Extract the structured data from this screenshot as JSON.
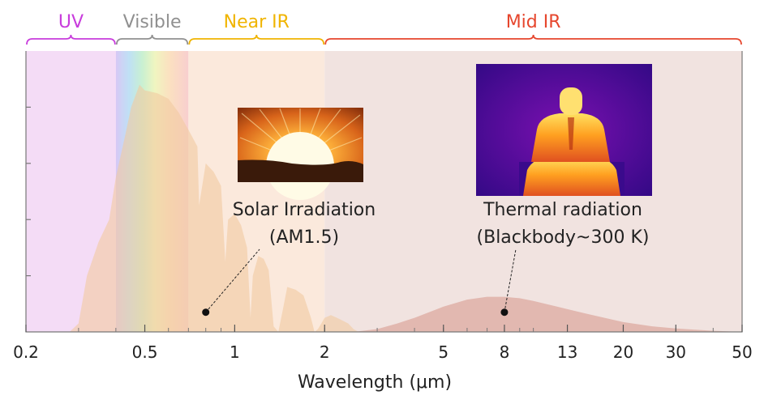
{
  "chart_data": {
    "type": "area",
    "title": "",
    "xlabel": "Wavelength (μm)",
    "ylabel": "",
    "xscale": "log",
    "xlim": [
      0.2,
      50
    ],
    "ylim": [
      0,
      1
    ],
    "x_ticks": [
      0.2,
      0.5,
      1,
      2,
      5,
      8,
      13,
      20,
      30,
      50
    ],
    "x_tick_labels": [
      "0.2",
      "0.5",
      "1",
      "2",
      "5",
      "8",
      "13",
      "20",
      "30",
      "50"
    ],
    "grid": false,
    "bands": [
      {
        "label": "UV",
        "range": [
          0.2,
          0.4
        ],
        "color": "#c83cdc"
      },
      {
        "label": "Visible",
        "range": [
          0.4,
          0.7
        ],
        "color": "#909090"
      },
      {
        "label": "Near IR",
        "range": [
          0.7,
          2
        ],
        "color": "#f0b400"
      },
      {
        "label": "Mid IR",
        "range": [
          2,
          50
        ],
        "color": "#e6462d"
      }
    ],
    "series": [
      {
        "name": "Solar Irradiation",
        "sublabel": "(AM1.5)",
        "color": "#f2c9a0",
        "x": [
          0.28,
          0.3,
          0.32,
          0.35,
          0.38,
          0.4,
          0.43,
          0.45,
          0.48,
          0.5,
          0.55,
          0.6,
          0.65,
          0.7,
          0.75,
          0.76,
          0.8,
          0.85,
          0.9,
          0.93,
          0.95,
          1.0,
          1.05,
          1.1,
          1.13,
          1.15,
          1.2,
          1.25,
          1.3,
          1.35,
          1.4,
          1.45,
          1.5,
          1.6,
          1.7,
          1.8,
          1.85,
          1.9,
          1.95,
          2.0,
          2.1,
          2.2,
          2.3,
          2.4,
          2.5,
          2.6,
          2.8,
          3.0
        ],
        "y": [
          0.0,
          0.03,
          0.2,
          0.32,
          0.4,
          0.55,
          0.7,
          0.8,
          0.88,
          0.86,
          0.85,
          0.83,
          0.78,
          0.72,
          0.66,
          0.45,
          0.6,
          0.57,
          0.52,
          0.25,
          0.4,
          0.42,
          0.38,
          0.3,
          0.05,
          0.2,
          0.27,
          0.26,
          0.22,
          0.02,
          0.0,
          0.08,
          0.16,
          0.15,
          0.13,
          0.05,
          0.0,
          0.01,
          0.03,
          0.05,
          0.06,
          0.05,
          0.04,
          0.03,
          0.01,
          0.0,
          0.0,
          0.0
        ]
      },
      {
        "name": "Thermal radiation",
        "sublabel": "(Blackbody~300 K)",
        "color": "#dcaaa0",
        "x": [
          2.5,
          3,
          3.5,
          4,
          5,
          6,
          7,
          8,
          9,
          10,
          12,
          15,
          20,
          25,
          30,
          40,
          50
        ],
        "y": [
          0.0,
          0.01,
          0.03,
          0.05,
          0.09,
          0.115,
          0.125,
          0.125,
          0.12,
          0.11,
          0.09,
          0.065,
          0.035,
          0.02,
          0.012,
          0.004,
          0.0
        ]
      }
    ],
    "annotations": [
      {
        "text": "Solar Irradiation",
        "sub": "(AM1.5)",
        "x": 0.8,
        "y": 0.07
      },
      {
        "text": "Thermal radiation",
        "sub": "(Blackbody~300 K)",
        "x": 8,
        "y": 0.07
      }
    ]
  }
}
